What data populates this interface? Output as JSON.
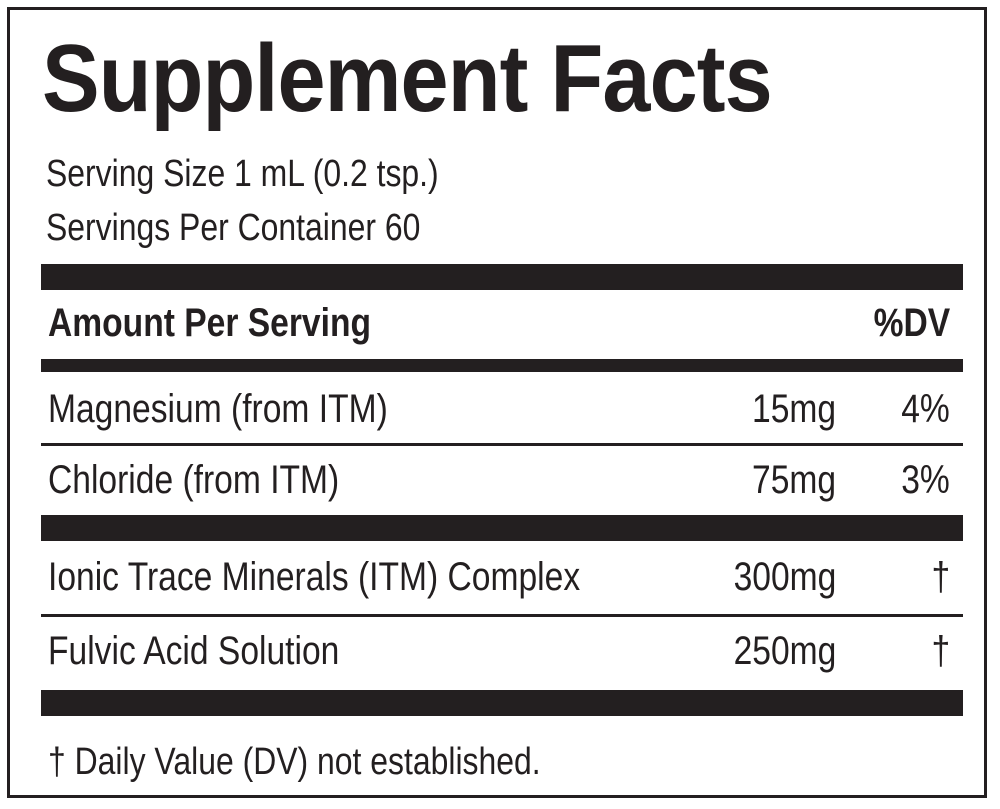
{
  "label": {
    "title": "Supplement Facts",
    "serving_size": "Serving Size 1 mL (0.2 tsp.)",
    "servings_per_container": "Servings Per Container 60",
    "header": {
      "amount_per_serving": "Amount Per Serving",
      "dv": "%DV"
    },
    "nutrients": [
      {
        "name": "Magnesium (from ITM)",
        "amount": "15mg",
        "dv": "4%"
      },
      {
        "name": "Chloride (from ITM)",
        "amount": "75mg",
        "dv": "3%"
      }
    ],
    "other_ingredients": [
      {
        "name": "Ionic Trace Minerals (ITM) Complex",
        "amount": "300mg",
        "dv": "†"
      },
      {
        "name": "Fulvic Acid Solution",
        "amount": "250mg",
        "dv": "†"
      }
    ],
    "footnote": "† Daily Value (DV) not established."
  },
  "colors": {
    "ink": "#231f20",
    "background": "#ffffff"
  }
}
